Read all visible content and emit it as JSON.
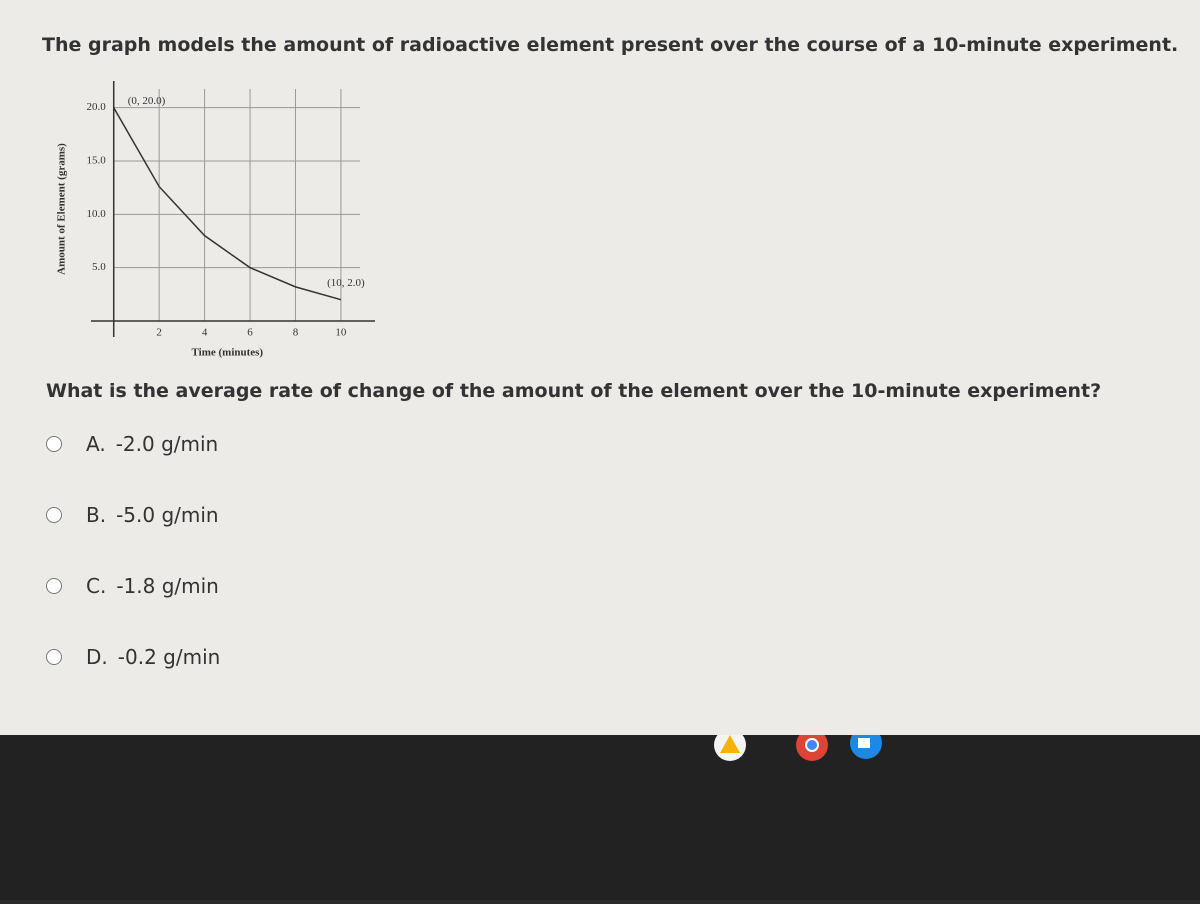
{
  "header": {
    "title": "The graph models the amount of radioactive element present over the course of a 10-minute experiment."
  },
  "chart_data": {
    "type": "line",
    "x_label": "Time (minutes)",
    "y_label": "Amount of Element (grams)",
    "x": [
      0,
      2,
      4,
      6,
      8,
      10
    ],
    "series": [
      {
        "name": "Amount",
        "color": "#333333",
        "values": [
          20,
          12.6,
          8,
          5,
          3.2,
          2
        ]
      }
    ],
    "xlim": [
      -1,
      11.5
    ],
    "ylim": [
      -1.5,
      22.5
    ],
    "xticks": [
      2,
      4,
      6,
      8,
      10
    ],
    "yticks": [
      {
        "value": 5,
        "label": "5.0"
      },
      {
        "value": 10,
        "label": "10.0"
      },
      {
        "value": 15,
        "label": "15.0"
      },
      {
        "value": 20,
        "label": "20.0"
      }
    ],
    "grid": true,
    "annotations": [
      {
        "x": 0,
        "y": 20,
        "text": "(0, 20.0)"
      },
      {
        "x": 10,
        "y": 2,
        "text": "(10, 2.0)"
      }
    ]
  },
  "question": "What is the average rate of change of the amount of the element over the 10-minute experiment?",
  "options": [
    {
      "letter": "A.",
      "text": "-2.0 g/min"
    },
    {
      "letter": "B.",
      "text": "-5.0 g/min"
    },
    {
      "letter": "C.",
      "text": "-1.8 g/min"
    },
    {
      "letter": "D.",
      "text": "-0.2 g/min"
    }
  ]
}
